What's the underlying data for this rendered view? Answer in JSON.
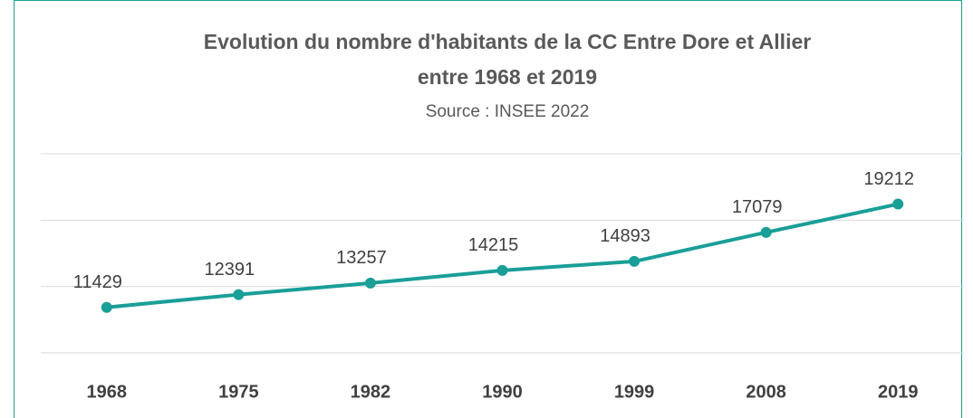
{
  "chart_data": {
    "type": "line",
    "title": [
      "Evolution du nombre d'habitants de la CC Entre Dore et Allier",
      "entre 1968 et 2019"
    ],
    "subtitle": "Source : INSEE 2022",
    "categories": [
      "1968",
      "1975",
      "1982",
      "1990",
      "1999",
      "2008",
      "2019"
    ],
    "values": [
      11429,
      12391,
      13257,
      14215,
      14893,
      17079,
      19212
    ],
    "color": "#1a9e98",
    "ylim": [
      8000,
      23000
    ],
    "yticks": [
      8000,
      13000,
      18000,
      23000
    ],
    "grid": true
  }
}
